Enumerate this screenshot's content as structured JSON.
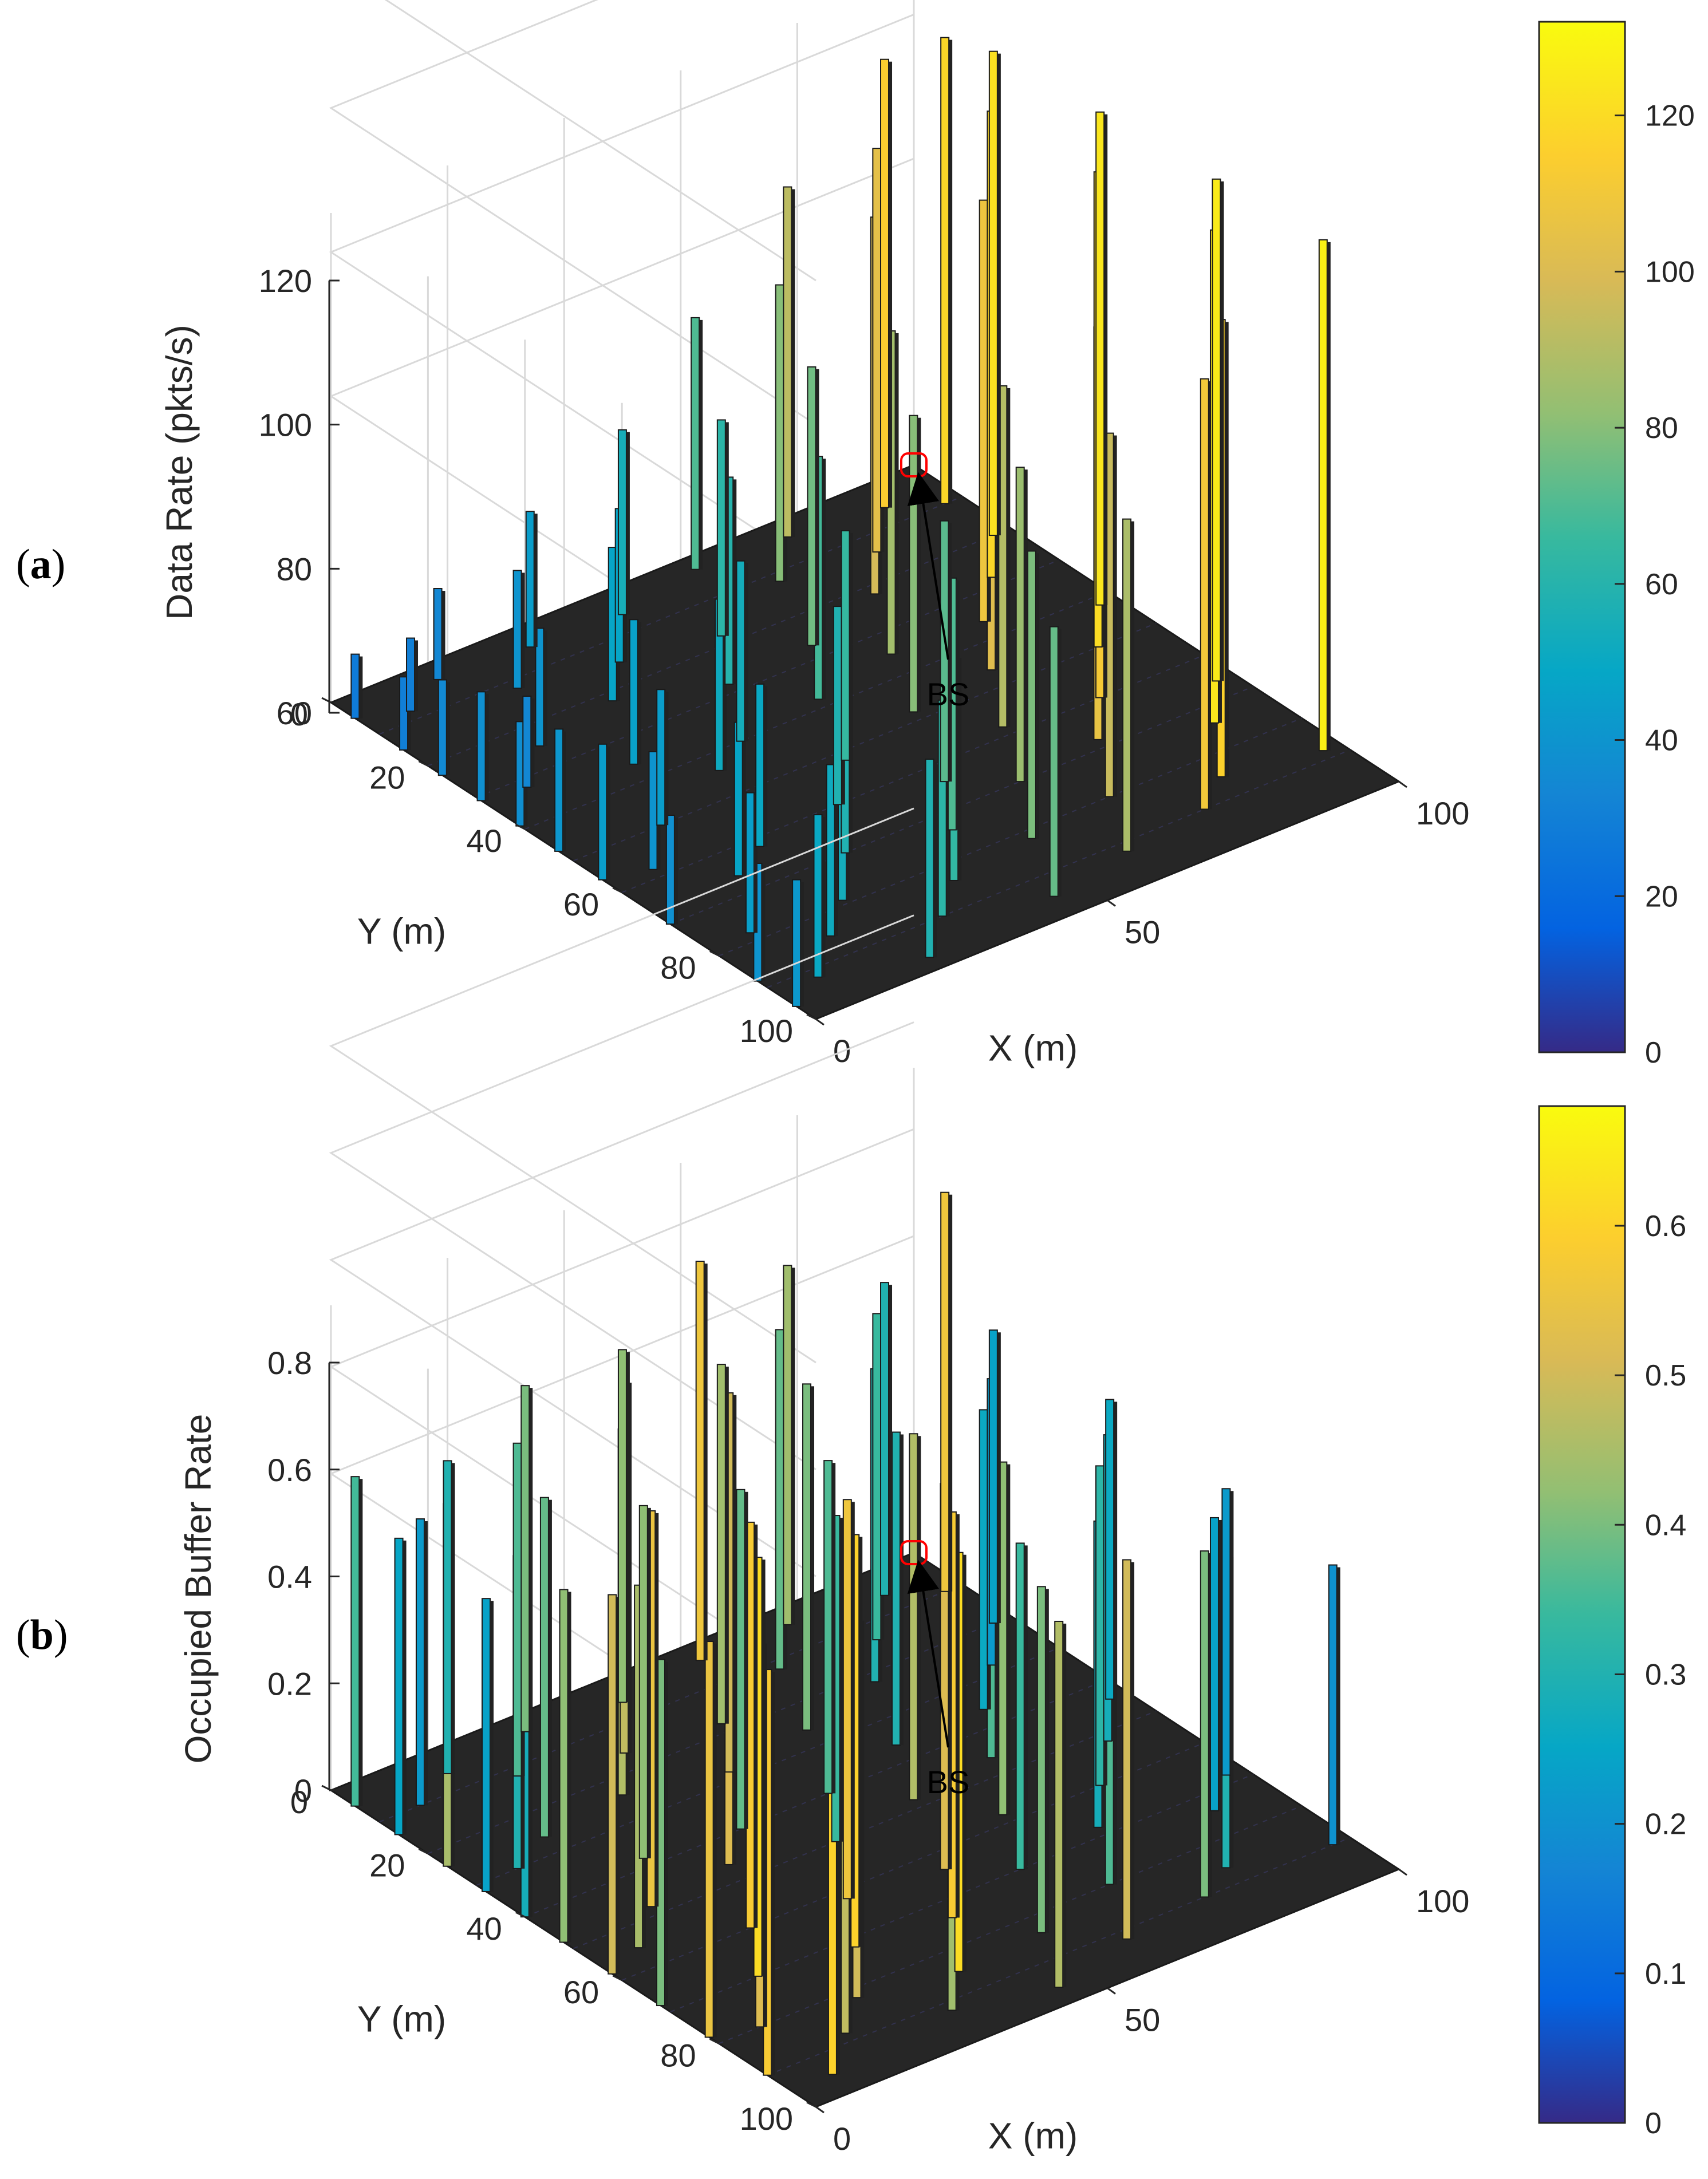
{
  "chart_data": [
    {
      "panel_label": "a",
      "type": "3d-bar",
      "xlabel": "X (m)",
      "ylabel": "Y (m)",
      "zlabel": "Data Rate (pkts/s)",
      "xlim": [
        0,
        100
      ],
      "ylim": [
        0,
        100
      ],
      "zlim": [
        60,
        120
      ],
      "x_ticks": [
        "0",
        "50",
        "100"
      ],
      "y_ticks": [
        "0",
        "20",
        "40",
        "60",
        "80",
        "100"
      ],
      "z_ticks": [
        "60",
        "80",
        "100",
        "120"
      ],
      "colorbar": {
        "range": [
          0,
          132
        ],
        "ticks": [
          "0",
          "20",
          "40",
          "60",
          "80",
          "100",
          "120"
        ],
        "colormap": "parula"
      },
      "annotation": "BS",
      "base_station": {
        "x": 100,
        "y": 0
      },
      "grid": true,
      "bars": [
        {
          "x": 0,
          "y": 5,
          "v": 28
        },
        {
          "x": 0,
          "y": 15,
          "v": 30
        },
        {
          "x": 0,
          "y": 23,
          "v": 35
        },
        {
          "x": 0,
          "y": 31,
          "v": 38
        },
        {
          "x": 0,
          "y": 39,
          "v": 37
        },
        {
          "x": 0,
          "y": 47,
          "v": 41
        },
        {
          "x": 0,
          "y": 56,
          "v": 44
        },
        {
          "x": 0,
          "y": 70,
          "v": 38
        },
        {
          "x": 0,
          "y": 88,
          "v": 40
        },
        {
          "x": 0,
          "y": 96,
          "v": 42
        },
        {
          "x": 7,
          "y": 8,
          "v": 30
        },
        {
          "x": 7,
          "y": 32,
          "v": 34
        },
        {
          "x": 7,
          "y": 58,
          "v": 40
        },
        {
          "x": 7,
          "y": 78,
          "v": 45
        },
        {
          "x": 7,
          "y": 92,
          "v": 50
        },
        {
          "x": 15,
          "y": 4,
          "v": 34
        },
        {
          "x": 15,
          "y": 25,
          "v": 40
        },
        {
          "x": 15,
          "y": 50,
          "v": 44
        },
        {
          "x": 15,
          "y": 66,
          "v": 48
        },
        {
          "x": 15,
          "y": 85,
          "v": 52
        },
        {
          "x": 22,
          "y": 12,
          "v": 40
        },
        {
          "x": 22,
          "y": 36,
          "v": 46
        },
        {
          "x": 22,
          "y": 62,
          "v": 50
        },
        {
          "x": 22,
          "y": 79,
          "v": 54
        },
        {
          "x": 22,
          "y": 97,
          "v": 58
        },
        {
          "x": 30,
          "y": 5,
          "v": 44
        },
        {
          "x": 30,
          "y": 22,
          "v": 48
        },
        {
          "x": 30,
          "y": 44,
          "v": 52
        },
        {
          "x": 30,
          "y": 70,
          "v": 58
        },
        {
          "x": 30,
          "y": 90,
          "v": 62
        },
        {
          "x": 37,
          "y": 15,
          "v": 48
        },
        {
          "x": 37,
          "y": 40,
          "v": 54
        },
        {
          "x": 37,
          "y": 60,
          "v": 58
        },
        {
          "x": 37,
          "y": 84,
          "v": 64
        },
        {
          "x": 45,
          "y": 6,
          "v": 55
        },
        {
          "x": 45,
          "y": 28,
          "v": 60
        },
        {
          "x": 45,
          "y": 52,
          "v": 65
        },
        {
          "x": 45,
          "y": 74,
          "v": 70
        },
        {
          "x": 45,
          "y": 95,
          "v": 74
        },
        {
          "x": 52,
          "y": 18,
          "v": 62
        },
        {
          "x": 52,
          "y": 38,
          "v": 68
        },
        {
          "x": 52,
          "y": 64,
          "v": 72
        },
        {
          "x": 52,
          "y": 82,
          "v": 78
        },
        {
          "x": 60,
          "y": 3,
          "v": 70
        },
        {
          "x": 60,
          "y": 27,
          "v": 76
        },
        {
          "x": 60,
          "y": 48,
          "v": 80
        },
        {
          "x": 60,
          "y": 70,
          "v": 84
        },
        {
          "x": 60,
          "y": 92,
          "v": 88
        },
        {
          "x": 67,
          "y": 12,
          "v": 80
        },
        {
          "x": 67,
          "y": 35,
          "v": 86
        },
        {
          "x": 67,
          "y": 58,
          "v": 90
        },
        {
          "x": 67,
          "y": 80,
          "v": 95
        },
        {
          "x": 75,
          "y": 4,
          "v": 92
        },
        {
          "x": 75,
          "y": 22,
          "v": 98
        },
        {
          "x": 75,
          "y": 46,
          "v": 102
        },
        {
          "x": 75,
          "y": 68,
          "v": 106
        },
        {
          "x": 75,
          "y": 90,
          "v": 110
        },
        {
          "x": 82,
          "y": 14,
          "v": 104
        },
        {
          "x": 82,
          "y": 36,
          "v": 108
        },
        {
          "x": 82,
          "y": 60,
          "v": 112
        },
        {
          "x": 82,
          "y": 85,
          "v": 116
        },
        {
          "x": 90,
          "y": 6,
          "v": 114
        },
        {
          "x": 90,
          "y": 28,
          "v": 118
        },
        {
          "x": 90,
          "y": 50,
          "v": 120
        },
        {
          "x": 90,
          "y": 74,
          "v": 124
        },
        {
          "x": 97,
          "y": 10,
          "v": 118
        },
        {
          "x": 97,
          "y": 20,
          "v": 122
        },
        {
          "x": 97,
          "y": 42,
          "v": 124
        },
        {
          "x": 97,
          "y": 66,
          "v": 126
        },
        {
          "x": 97,
          "y": 88,
          "v": 128
        }
      ]
    },
    {
      "panel_label": "b",
      "type": "3d-bar",
      "xlabel": "X (m)",
      "ylabel": "Y (m)",
      "zlabel": "Occupied Buffer Rate",
      "xlim": [
        0,
        100
      ],
      "ylim": [
        0,
        100
      ],
      "zlim": [
        0,
        0.8
      ],
      "x_ticks": [
        "0",
        "50",
        "100"
      ],
      "y_ticks": [
        "0",
        "20",
        "40",
        "60",
        "80",
        "100"
      ],
      "z_ticks": [
        "0",
        "0.2",
        "0.4",
        "0.6",
        "0.8"
      ],
      "colorbar": {
        "range": [
          0,
          0.68
        ],
        "ticks": [
          "0",
          "0.1",
          "0.2",
          "0.3",
          "0.4",
          "0.5",
          "0.6"
        ],
        "colormap": "parula"
      },
      "annotation": "BS",
      "base_station": {
        "x": 100,
        "y": 0
      },
      "grid": true,
      "bars": [
        {
          "x": 0,
          "y": 5,
          "v": 0.35
        },
        {
          "x": 0,
          "y": 14,
          "v": 0.25
        },
        {
          "x": 0,
          "y": 24,
          "v": 0.45
        },
        {
          "x": 0,
          "y": 32,
          "v": 0.24
        },
        {
          "x": 0,
          "y": 40,
          "v": 0.28
        },
        {
          "x": 0,
          "y": 48,
          "v": 0.42
        },
        {
          "x": 0,
          "y": 58,
          "v": 0.5
        },
        {
          "x": 0,
          "y": 68,
          "v": 0.4
        },
        {
          "x": 0,
          "y": 78,
          "v": 0.55
        },
        {
          "x": 0,
          "y": 90,
          "v": 0.58
        },
        {
          "x": 7,
          "y": 10,
          "v": 0.22
        },
        {
          "x": 7,
          "y": 30,
          "v": 0.3
        },
        {
          "x": 7,
          "y": 55,
          "v": 0.45
        },
        {
          "x": 7,
          "y": 80,
          "v": 0.52
        },
        {
          "x": 7,
          "y": 95,
          "v": 0.6
        },
        {
          "x": 15,
          "y": 6,
          "v": 0.3
        },
        {
          "x": 15,
          "y": 26,
          "v": 0.38
        },
        {
          "x": 15,
          "y": 48,
          "v": 0.55
        },
        {
          "x": 15,
          "y": 70,
          "v": 0.62
        },
        {
          "x": 15,
          "y": 88,
          "v": 0.48
        },
        {
          "x": 22,
          "y": 12,
          "v": 0.36
        },
        {
          "x": 22,
          "y": 38,
          "v": 0.42
        },
        {
          "x": 22,
          "y": 60,
          "v": 0.58
        },
        {
          "x": 22,
          "y": 82,
          "v": 0.5
        },
        {
          "x": 30,
          "y": 4,
          "v": 0.4
        },
        {
          "x": 30,
          "y": 24,
          "v": 0.46
        },
        {
          "x": 30,
          "y": 46,
          "v": 0.52
        },
        {
          "x": 30,
          "y": 72,
          "v": 0.6
        },
        {
          "x": 30,
          "y": 92,
          "v": 0.44
        },
        {
          "x": 37,
          "y": 16,
          "v": 0.48
        },
        {
          "x": 37,
          "y": 40,
          "v": 0.38
        },
        {
          "x": 37,
          "y": 62,
          "v": 0.56
        },
        {
          "x": 37,
          "y": 85,
          "v": 0.62
        },
        {
          "x": 45,
          "y": 6,
          "v": 0.42
        },
        {
          "x": 45,
          "y": 28,
          "v": 0.5
        },
        {
          "x": 45,
          "y": 50,
          "v": 0.34
        },
        {
          "x": 45,
          "y": 74,
          "v": 0.58
        },
        {
          "x": 45,
          "y": 96,
          "v": 0.46
        },
        {
          "x": 52,
          "y": 18,
          "v": 0.44
        },
        {
          "x": 52,
          "y": 40,
          "v": 0.36
        },
        {
          "x": 52,
          "y": 64,
          "v": 0.52
        },
        {
          "x": 52,
          "y": 84,
          "v": 0.4
        },
        {
          "x": 60,
          "y": 4,
          "v": 0.56
        },
        {
          "x": 60,
          "y": 26,
          "v": 0.4
        },
        {
          "x": 60,
          "y": 48,
          "v": 0.46
        },
        {
          "x": 60,
          "y": 70,
          "v": 0.34
        },
        {
          "x": 60,
          "y": 92,
          "v": 0.5
        },
        {
          "x": 67,
          "y": 12,
          "v": 0.38
        },
        {
          "x": 67,
          "y": 36,
          "v": 0.3
        },
        {
          "x": 67,
          "y": 58,
          "v": 0.42
        },
        {
          "x": 67,
          "y": 80,
          "v": 0.36
        },
        {
          "x": 75,
          "y": 4,
          "v": 0.44
        },
        {
          "x": 75,
          "y": 22,
          "v": 0.3
        },
        {
          "x": 75,
          "y": 46,
          "v": 0.36
        },
        {
          "x": 75,
          "y": 68,
          "v": 0.28
        },
        {
          "x": 75,
          "y": 90,
          "v": 0.4
        },
        {
          "x": 82,
          "y": 14,
          "v": 0.34
        },
        {
          "x": 82,
          "y": 36,
          "v": 0.26
        },
        {
          "x": 82,
          "y": 60,
          "v": 0.32
        },
        {
          "x": 82,
          "y": 86,
          "v": 0.3
        },
        {
          "x": 90,
          "y": 6,
          "v": 0.3
        },
        {
          "x": 90,
          "y": 28,
          "v": 0.22
        },
        {
          "x": 90,
          "y": 52,
          "v": 0.28
        },
        {
          "x": 90,
          "y": 74,
          "v": 0.24
        },
        {
          "x": 97,
          "y": 10,
          "v": 0.56
        },
        {
          "x": 97,
          "y": 20,
          "v": 0.24
        },
        {
          "x": 97,
          "y": 44,
          "v": 0.26
        },
        {
          "x": 97,
          "y": 68,
          "v": 0.22
        },
        {
          "x": 97,
          "y": 90,
          "v": 0.2
        }
      ]
    }
  ]
}
